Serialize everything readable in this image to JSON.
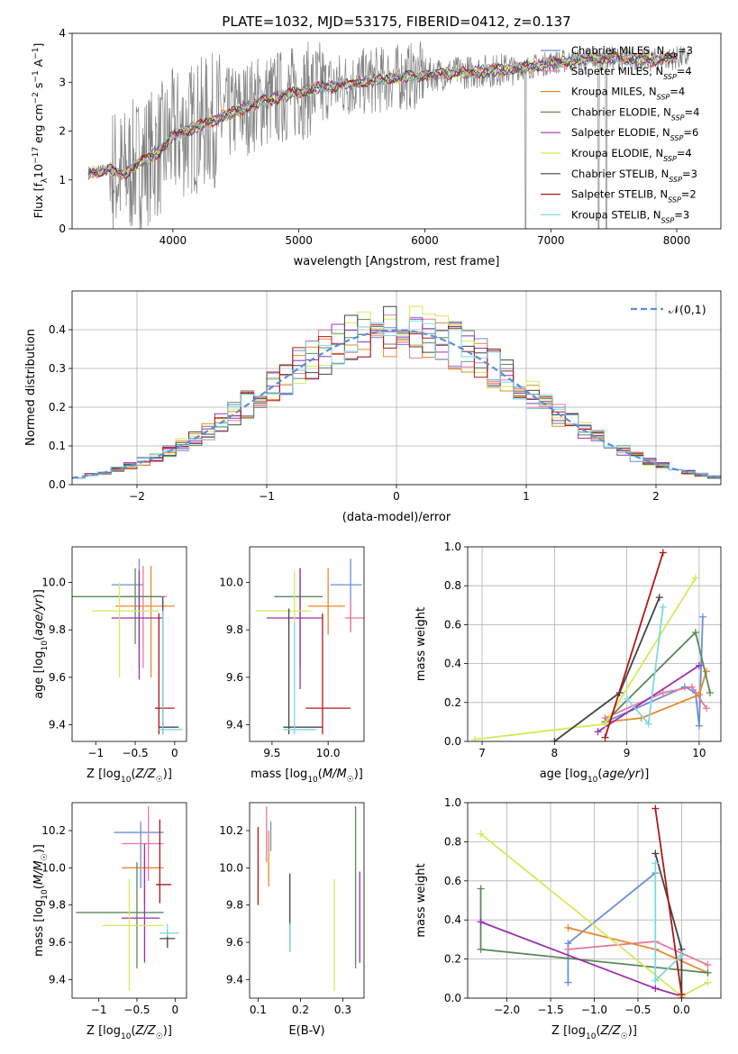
{
  "title": "PLATE=1032, MJD=53175, FIBERID=0412, z=0.137",
  "colors": {
    "Chabrier MILES": "#6a8fd8",
    "Salpeter MILES": "#e9789e",
    "Kroupa MILES": "#e68a2e",
    "Chabrier ELODIE": "#5a8a5a",
    "Salpeter ELODIE": "#9b30b0",
    "Kroupa ELODIE": "#d6e85a",
    "Chabrier STELIB": "#444444",
    "Salpeter STELIB": "#b01818",
    "Kroupa STELIB": "#7fd8e0",
    "normal": "#5b8fd8",
    "data": "#808080"
  },
  "chart_data": [
    {
      "type": "line",
      "xlabel": "wavelength [Angstrom, rest frame]",
      "ylabel": "Flux [f_λ 10⁻¹⁷ erg cm⁻² s⁻¹ A⁻¹]",
      "xlim": [
        3200,
        8350
      ],
      "ylim": [
        0,
        4
      ],
      "xticks": [
        4000,
        5000,
        6000,
        7000,
        8000
      ],
      "yticks": [
        0,
        1,
        2,
        3,
        4
      ],
      "data_color": "gray",
      "legend_position": "top-right",
      "legend": [
        {
          "name": "Chabrier MILES",
          "nssp": "3"
        },
        {
          "name": "Salpeter MILES",
          "nssp": "4"
        },
        {
          "name": "Kroupa MILES",
          "nssp": "4"
        },
        {
          "name": "Chabrier ELODIE",
          "nssp": "4"
        },
        {
          "name": "Salpeter ELODIE",
          "nssp": "6"
        },
        {
          "name": "Kroupa ELODIE",
          "nssp": "4"
        },
        {
          "name": "Chabrier STELIB",
          "nssp": "3"
        },
        {
          "name": "Salpeter STELIB",
          "nssp": "2"
        },
        {
          "name": "Kroupa STELIB",
          "nssp": "3"
        }
      ],
      "model_continuum": {
        "x": [
          3350,
          3500,
          3600,
          3700,
          3800,
          3900,
          4000,
          4100,
          4300,
          4500,
          4700,
          5000,
          5200,
          5500,
          5800,
          6000,
          6300,
          6600,
          6800,
          7000,
          7200,
          7500,
          7800,
          8000
        ],
        "y": [
          1.15,
          1.2,
          1.1,
          1.3,
          1.45,
          1.6,
          1.9,
          2.0,
          2.2,
          2.4,
          2.6,
          2.8,
          2.9,
          3.0,
          3.1,
          3.15,
          3.2,
          3.25,
          3.3,
          3.4,
          3.45,
          3.5,
          3.45,
          3.5
        ]
      }
    },
    {
      "type": "step",
      "xlabel": "(data-model)/error",
      "ylabel": "Normed distribution",
      "xlim": [
        -2.5,
        2.5
      ],
      "ylim": [
        0,
        0.5
      ],
      "xticks": [
        -2,
        -1,
        0,
        1,
        2
      ],
      "yticks": [
        0.0,
        0.1,
        0.2,
        0.3,
        0.4
      ],
      "legend": "𝒩(0,1)",
      "grid": true
    },
    {
      "type": "errorbar",
      "xlabel": "Z [log₁₀(Z/Z☉)]",
      "ylabel": "age  [log₁₀(age/yr)]",
      "xlim": [
        -1.3,
        0.15
      ],
      "ylim": [
        9.33,
        10.15
      ],
      "xticks": [
        -1,
        -0.5,
        0
      ],
      "yticks": [
        9.4,
        9.6,
        9.8,
        10.0
      ],
      "series": [
        {
          "name": "Chabrier MILES",
          "x": -0.45,
          "xerr": [
            0.35,
            0.05
          ],
          "y": 9.99,
          "yerr": [
            0.35,
            0.11
          ]
        },
        {
          "name": "Salpeter MILES",
          "x": -0.4,
          "xerr": [
            0.3,
            0.3
          ],
          "y": 9.94,
          "yerr": [
            0.3,
            0.13
          ]
        },
        {
          "name": "Kroupa MILES",
          "x": -0.3,
          "xerr": [
            0.45,
            0.3
          ],
          "y": 9.9,
          "yerr": [
            0.3,
            0.17
          ]
        },
        {
          "name": "Chabrier ELODIE",
          "x": -0.5,
          "xerr": [
            0.8,
            0.35
          ],
          "y": 9.94,
          "yerr": [
            0.2,
            0.12
          ]
        },
        {
          "name": "Salpeter ELODIE",
          "x": -0.45,
          "xerr": [
            0.35,
            0.3
          ],
          "y": 9.85,
          "yerr": [
            0.26,
            0.2
          ]
        },
        {
          "name": "Kroupa ELODIE",
          "x": -0.7,
          "xerr": [
            0.35,
            0.5
          ],
          "y": 9.88,
          "yerr": [
            0.28,
            0.12
          ]
        },
        {
          "name": "Chabrier STELIB",
          "x": -0.15,
          "xerr": [
            0.05,
            0.2
          ],
          "y": 9.39,
          "yerr": [
            0.03,
            0.55
          ]
        },
        {
          "name": "Salpeter STELIB",
          "x": -0.2,
          "xerr": [
            0.05,
            0.2
          ],
          "y": 9.47,
          "yerr": [
            0.11,
            0.4
          ]
        },
        {
          "name": "Kroupa STELIB",
          "x": -0.15,
          "xerr": [
            0.05,
            0.25
          ],
          "y": 9.38,
          "yerr": [
            0.02,
            0.5
          ]
        }
      ]
    },
    {
      "type": "errorbar",
      "xlabel": "mass [log₁₀(M/M☉)]",
      "xlim": [
        9.3,
        10.32
      ],
      "ylim": [
        9.33,
        10.15
      ],
      "xticks": [
        9.5,
        10.0
      ],
      "yticks": [
        9.4,
        9.6,
        9.8,
        10.0
      ],
      "series": [
        {
          "name": "Chabrier MILES",
          "x": 10.2,
          "xerr": [
            0.18,
            0.1
          ],
          "y": 9.99,
          "yerr": [
            0.2,
            0.11
          ]
        },
        {
          "name": "Salpeter MILES",
          "x": 10.2,
          "xerr": [
            0.05,
            0.15
          ],
          "y": 9.85,
          "yerr": [
            0.05,
            0.08
          ]
        },
        {
          "name": "Kroupa MILES",
          "x": 10.0,
          "xerr": [
            0.18,
            0.15
          ],
          "y": 9.9,
          "yerr": [
            0.12,
            0.16
          ]
        },
        {
          "name": "Chabrier ELODIE",
          "x": 9.75,
          "xerr": [
            0.23,
            0.2
          ],
          "y": 9.94,
          "yerr": [
            0.3,
            0.12
          ]
        },
        {
          "name": "Salpeter ELODIE",
          "x": 9.75,
          "xerr": [
            0.3,
            0.2
          ],
          "y": 9.85,
          "yerr": [
            0.3,
            0.21
          ]
        },
        {
          "name": "Kroupa ELODIE",
          "x": 9.7,
          "xerr": [
            0.35,
            0.15
          ],
          "y": 9.88,
          "yerr": [
            0.2,
            0.17
          ]
        },
        {
          "name": "Chabrier STELIB",
          "x": 9.65,
          "xerr": [
            0.05,
            0.3
          ],
          "y": 9.39,
          "yerr": [
            0.03,
            0.5
          ]
        },
        {
          "name": "Salpeter STELIB",
          "x": 9.95,
          "xerr": [
            0.15,
            0.25
          ],
          "y": 9.47,
          "yerr": [
            0.11,
            0.4
          ]
        },
        {
          "name": "Kroupa STELIB",
          "x": 9.7,
          "xerr": [
            0.1,
            0.2
          ],
          "y": 9.38,
          "yerr": [
            0.02,
            0.45
          ]
        }
      ]
    },
    {
      "type": "line",
      "xlabel": "age  [log₁₀(age/yr)]",
      "ylabel": "mass weight",
      "xlim": [
        6.8,
        10.3
      ],
      "ylim": [
        0,
        1
      ],
      "xticks": [
        7,
        8,
        9,
        10
      ],
      "yticks": [
        0.0,
        0.2,
        0.4,
        0.6,
        0.8,
        1.0
      ],
      "grid": true,
      "series": [
        {
          "name": "Chabrier MILES",
          "x": [
            8.7,
            9.8,
            9.95,
            10.0,
            10.05
          ],
          "y": [
            0.1,
            0.28,
            0.25,
            0.08,
            0.64
          ]
        },
        {
          "name": "Salpeter MILES",
          "x": [
            8.7,
            9.5,
            9.9,
            10.1
          ],
          "y": [
            0.12,
            0.25,
            0.28,
            0.17
          ]
        },
        {
          "name": "Kroupa MILES",
          "x": [
            8.7,
            9.2,
            10.0,
            10.1
          ],
          "y": [
            0.1,
            0.12,
            0.24,
            0.36
          ]
        },
        {
          "name": "Chabrier ELODIE",
          "x": [
            8.7,
            9.95,
            10.15
          ],
          "y": [
            0.1,
            0.56,
            0.25
          ]
        },
        {
          "name": "Salpeter ELODIE",
          "x": [
            8.6,
            10.0
          ],
          "y": [
            0.05,
            0.39
          ]
        },
        {
          "name": "Kroupa ELODIE",
          "x": [
            6.9,
            8.7,
            9.95
          ],
          "y": [
            0.01,
            0.09,
            0.84
          ]
        },
        {
          "name": "Chabrier STELIB",
          "x": [
            8.0,
            8.9,
            9.45
          ],
          "y": [
            0.0,
            0.25,
            0.74
          ]
        },
        {
          "name": "Salpeter STELIB",
          "x": [
            8.7,
            9.5
          ],
          "y": [
            0.02,
            0.97
          ]
        },
        {
          "name": "Kroupa STELIB",
          "x": [
            9.0,
            9.3,
            9.5
          ],
          "y": [
            0.22,
            0.09,
            0.69
          ]
        }
      ]
    },
    {
      "type": "errorbar",
      "xlabel": "Z [log₁₀(Z/Z☉)]",
      "ylabel": "mass [log₁₀(M/M☉)]",
      "xlim": [
        -1.35,
        0.15
      ],
      "ylim": [
        9.3,
        10.35
      ],
      "xticks": [
        -1,
        -0.5,
        0
      ],
      "yticks": [
        9.4,
        9.6,
        9.8,
        10.0,
        10.2
      ],
      "series": [
        {
          "name": "Chabrier MILES",
          "x": -0.45,
          "xerr": [
            0.35,
            0.3
          ],
          "y": 10.19,
          "yerr": [
            0.3,
            0.06
          ]
        },
        {
          "name": "Salpeter MILES",
          "x": -0.35,
          "xerr": [
            0.35,
            0.2
          ],
          "y": 10.13,
          "yerr": [
            0.2,
            0.2
          ]
        },
        {
          "name": "Kroupa MILES",
          "x": -0.4,
          "xerr": [
            0.3,
            0.25
          ],
          "y": 10.0,
          "yerr": [
            0.2,
            0.1
          ]
        },
        {
          "name": "Chabrier ELODIE",
          "x": -0.5,
          "xerr": [
            0.8,
            0.35
          ],
          "y": 9.76,
          "yerr": [
            0.3,
            0.27
          ]
        },
        {
          "name": "Salpeter ELODIE",
          "x": -0.4,
          "xerr": [
            0.3,
            0.2
          ],
          "y": 9.73,
          "yerr": [
            0.24,
            0.4
          ]
        },
        {
          "name": "Kroupa ELODIE",
          "x": -0.6,
          "xerr": [
            0.35,
            0.45
          ],
          "y": 9.69,
          "yerr": [
            0.35,
            0.25
          ]
        },
        {
          "name": "Chabrier STELIB",
          "x": -0.1,
          "xerr": [
            0.1,
            0.1
          ],
          "y": 9.62,
          "yerr": [
            0.05,
            0.05
          ]
        },
        {
          "name": "Salpeter STELIB",
          "x": -0.2,
          "xerr": [
            0.05,
            0.15
          ],
          "y": 9.91,
          "yerr": [
            0.1,
            0.35
          ]
        },
        {
          "name": "Kroupa STELIB",
          "x": -0.1,
          "xerr": [
            0.1,
            0.15
          ],
          "y": 9.65,
          "yerr": [
            0.02,
            0.05
          ]
        }
      ]
    },
    {
      "type": "errorbar",
      "xlabel": "E(B-V)",
      "xlim": [
        0.08,
        0.35
      ],
      "ylim": [
        9.3,
        10.35
      ],
      "xticks": [
        0.1,
        0.2,
        0.3
      ],
      "yticks": [
        9.4,
        9.6,
        9.8,
        10.0,
        10.2
      ],
      "series": [
        {
          "name": "Chabrier MILES",
          "x": 0.13,
          "xerr": [
            0,
            0
          ],
          "y": 10.19,
          "yerr": [
            0.1,
            0.06
          ]
        },
        {
          "name": "Salpeter MILES",
          "x": 0.12,
          "xerr": [
            0,
            0
          ],
          "y": 10.13,
          "yerr": [
            0.1,
            0.2
          ]
        },
        {
          "name": "Kroupa MILES",
          "x": 0.125,
          "xerr": [
            0,
            0
          ],
          "y": 10.05,
          "yerr": [
            0.15,
            0.15
          ]
        },
        {
          "name": "Chabrier ELODIE",
          "x": 0.33,
          "xerr": [
            0,
            0
          ],
          "y": 9.76,
          "yerr": [
            0.3,
            0.57
          ]
        },
        {
          "name": "Salpeter ELODIE",
          "x": 0.34,
          "xerr": [
            0,
            0
          ],
          "y": 9.73,
          "yerr": [
            0.24,
            0.25
          ]
        },
        {
          "name": "Kroupa ELODIE",
          "x": 0.28,
          "xerr": [
            0,
            0
          ],
          "y": 9.69,
          "yerr": [
            0.35,
            0.25
          ]
        },
        {
          "name": "Chabrier STELIB",
          "x": 0.175,
          "xerr": [
            0,
            0
          ],
          "y": 9.75,
          "yerr": [
            0.2,
            0.22
          ]
        },
        {
          "name": "Salpeter STELIB",
          "x": 0.1,
          "xerr": [
            0,
            0
          ],
          "y": 10.0,
          "yerr": [
            0.2,
            0.22
          ]
        },
        {
          "name": "Kroupa STELIB",
          "x": 0.175,
          "xerr": [
            0,
            0
          ],
          "y": 9.65,
          "yerr": [
            0.1,
            0.05
          ]
        }
      ]
    },
    {
      "type": "line",
      "xlabel": "Z [log₁₀(Z/Z☉)]",
      "ylabel": "mass weight",
      "xlim": [
        -2.45,
        0.45
      ],
      "ylim": [
        0,
        1
      ],
      "xticks": [
        -2.0,
        -1.5,
        -1.0,
        -0.5,
        0.0
      ],
      "yticks": [
        0.0,
        0.2,
        0.4,
        0.6,
        0.8,
        1.0
      ],
      "grid": true,
      "series": [
        {
          "name": "Chabrier MILES",
          "x": [
            -1.3,
            -1.3,
            -0.3
          ],
          "y": [
            0.08,
            0.28,
            0.64
          ]
        },
        {
          "name": "Salpeter MILES",
          "x": [
            -1.3,
            -0.3,
            0.3
          ],
          "y": [
            0.25,
            0.29,
            0.17
          ]
        },
        {
          "name": "Kroupa MILES",
          "x": [
            -1.3,
            -0.3,
            0.3
          ],
          "y": [
            0.36,
            0.25,
            0.13
          ]
        },
        {
          "name": "Chabrier ELODIE",
          "x": [
            -2.3,
            -2.3,
            0.3
          ],
          "y": [
            0.56,
            0.25,
            0.13
          ]
        },
        {
          "name": "Salpeter ELODIE",
          "x": [
            -2.3,
            -0.3,
            0.0
          ],
          "y": [
            0.39,
            0.05,
            0.01
          ]
        },
        {
          "name": "Kroupa ELODIE",
          "x": [
            -2.3,
            0.0,
            0.3
          ],
          "y": [
            0.84,
            0.01,
            0.08
          ]
        },
        {
          "name": "Chabrier STELIB",
          "x": [
            -0.3,
            0.0,
            0.0
          ],
          "y": [
            0.74,
            0.25,
            0.0
          ]
        },
        {
          "name": "Salpeter STELIB",
          "x": [
            -0.3,
            0.0
          ],
          "y": [
            0.97,
            0.02
          ]
        },
        {
          "name": "Kroupa STELIB",
          "x": [
            -0.3,
            -0.3,
            0.0
          ],
          "y": [
            0.69,
            0.09,
            0.22
          ]
        }
      ]
    }
  ]
}
